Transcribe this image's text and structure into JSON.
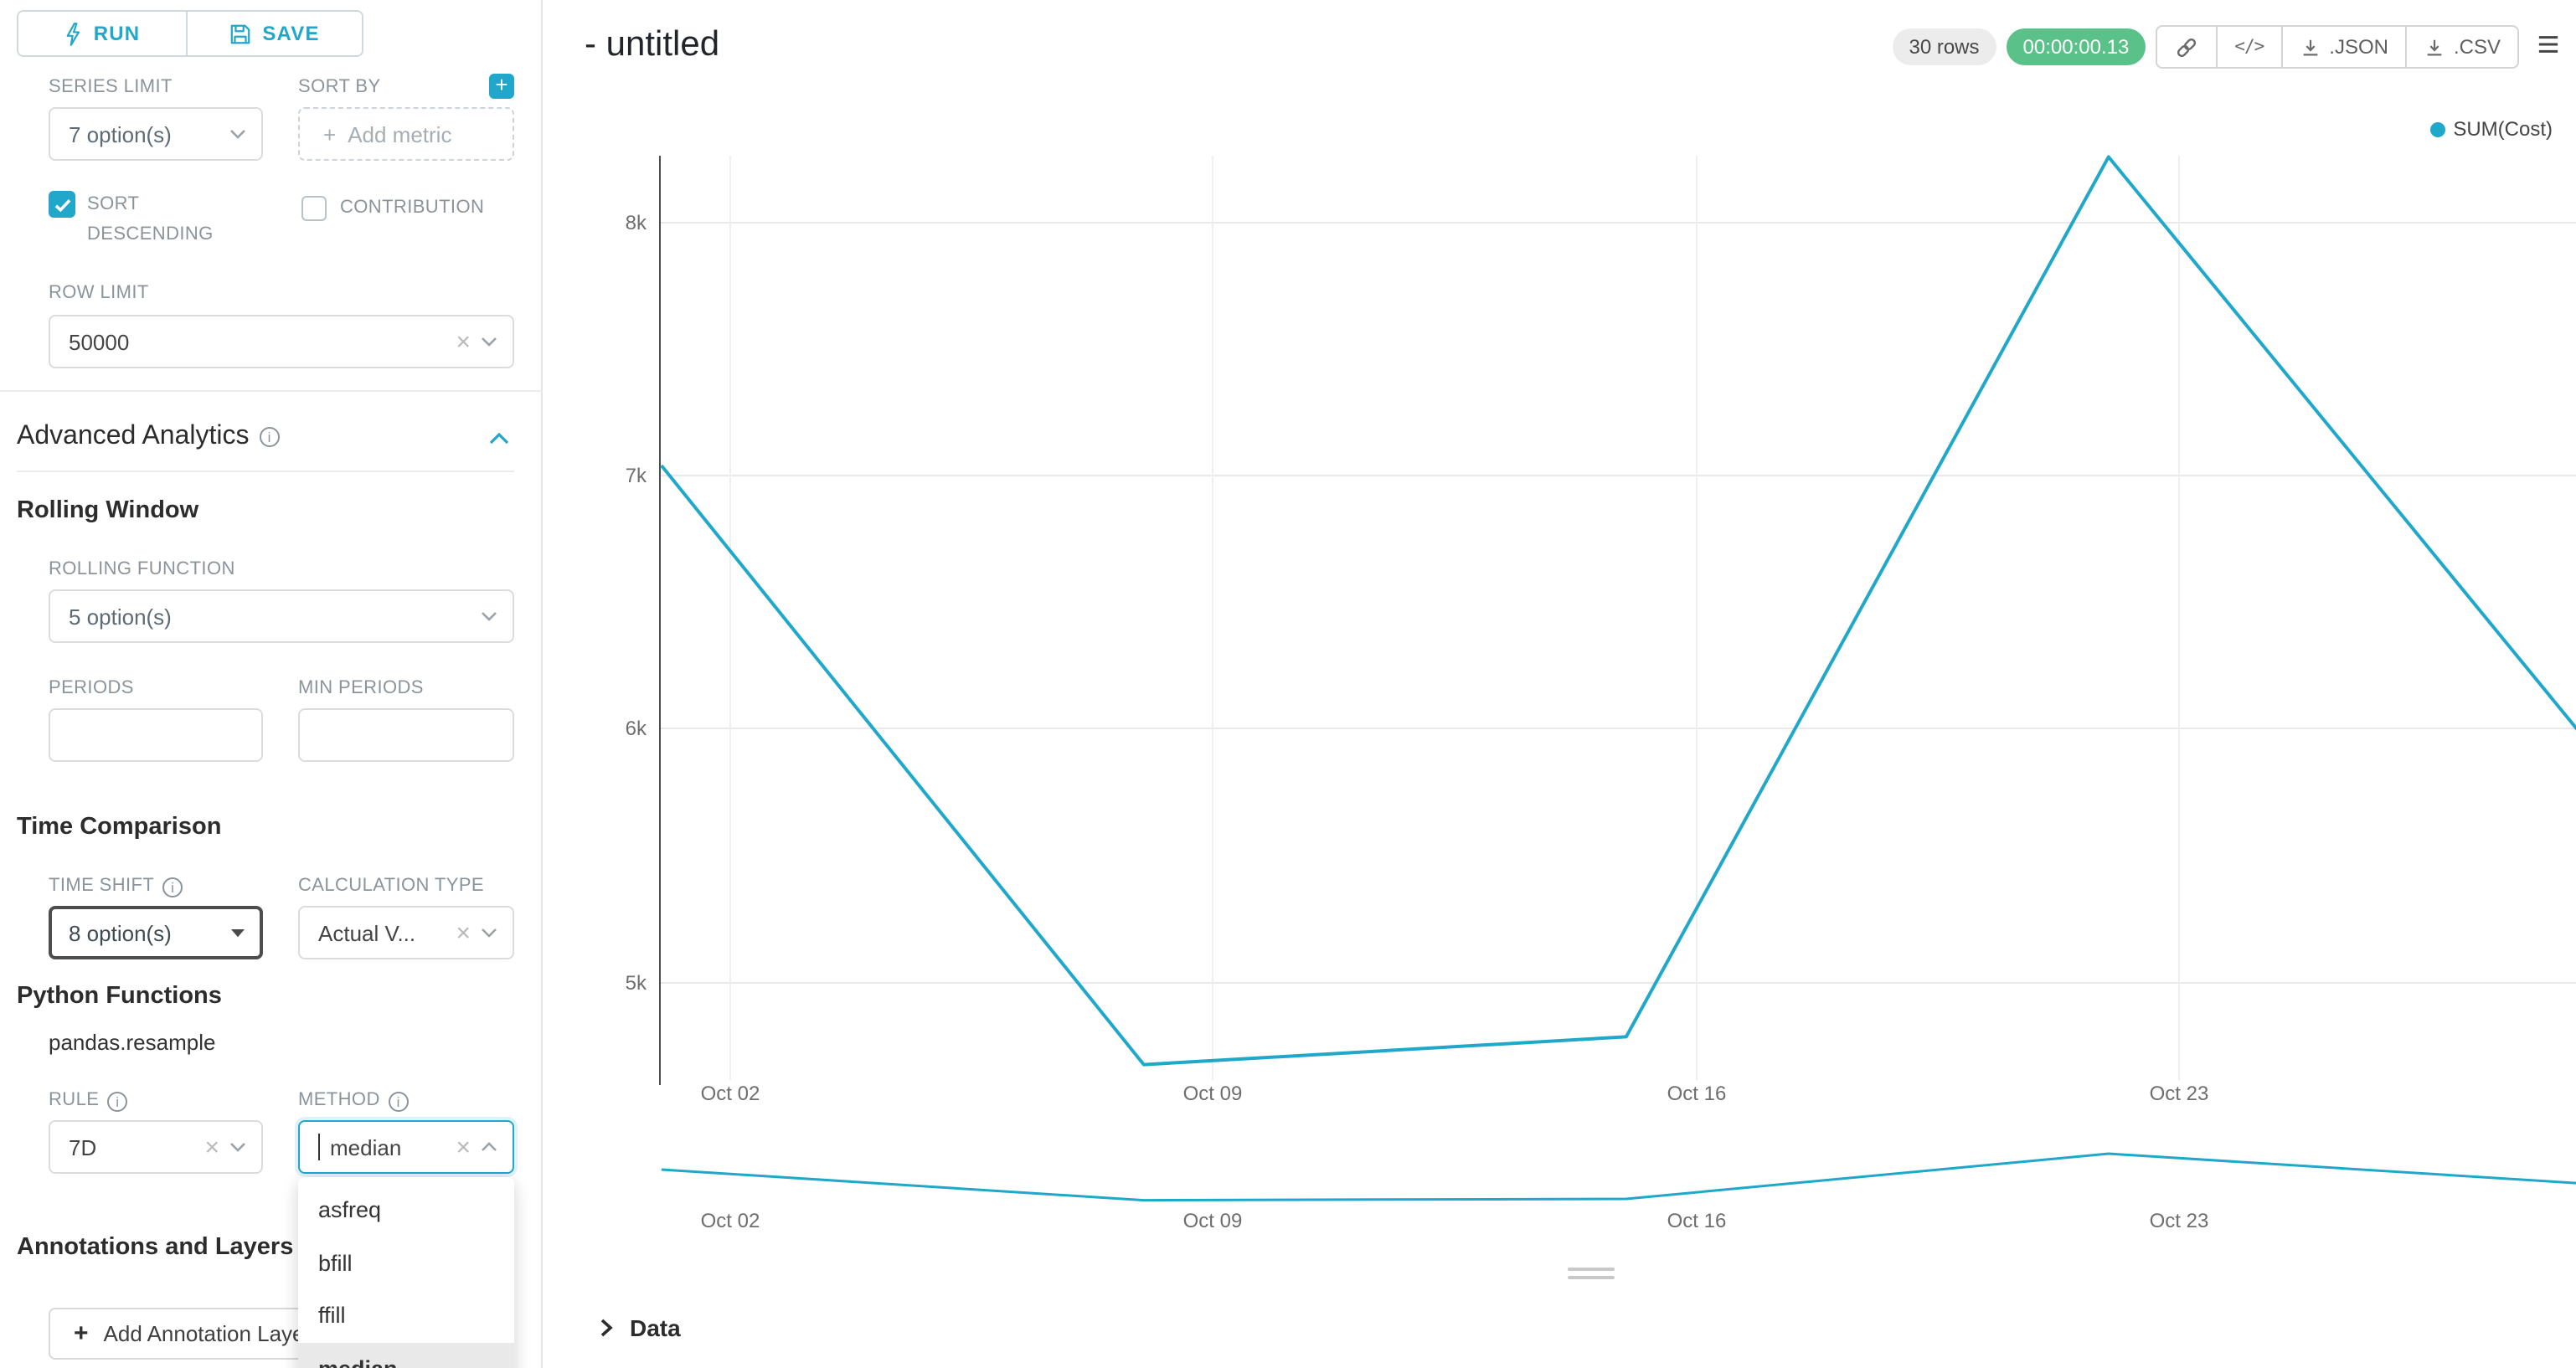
{
  "colors": {
    "primary": "#20A7C9",
    "line": "#1FA8C9",
    "timer_green": "#5AC189"
  },
  "sidebar": {
    "run_label": "RUN",
    "save_label": "SAVE",
    "series_limit": {
      "label": "SERIES LIMIT",
      "value": "7 option(s)"
    },
    "sort_by": {
      "label": "SORT BY",
      "placeholder": "Add metric"
    },
    "sort_descending": {
      "label": "SORT DESCENDING",
      "checked": true
    },
    "contribution": {
      "label": "CONTRIBUTION",
      "checked": false
    },
    "row_limit": {
      "label": "ROW LIMIT",
      "value": "50000"
    },
    "advanced_analytics_title": "Advanced Analytics",
    "rolling_window": {
      "title": "Rolling Window",
      "rolling_function": {
        "label": "ROLLING FUNCTION",
        "value": "5 option(s)"
      },
      "periods_label": "PERIODS",
      "min_periods_label": "MIN PERIODS"
    },
    "time_comparison": {
      "title": "Time Comparison",
      "time_shift": {
        "label": "TIME SHIFT",
        "value": "8 option(s)"
      },
      "calculation_type": {
        "label": "CALCULATION TYPE",
        "value": "Actual V..."
      }
    },
    "python_functions": {
      "title": "Python Functions",
      "subtitle": "pandas.resample",
      "rule": {
        "label": "RULE",
        "value": "7D"
      },
      "method": {
        "label": "METHOD",
        "value": "median",
        "options": [
          "asfreq",
          "bfill",
          "ffill",
          "median"
        ],
        "selected": "median"
      }
    },
    "annotations": {
      "title": "Annotations and Layers",
      "add_button_label": "Add Annotation Layer"
    }
  },
  "header": {
    "title": "- untitled",
    "rows_badge": "30 rows",
    "timer_badge": "00:00:00.13",
    "json_label": ".JSON",
    "csv_label": ".CSV"
  },
  "chart_data": [
    {
      "type": "line",
      "title": "",
      "series": [
        {
          "name": "SUM(Cost)",
          "x": [
            "Oct 01",
            "Oct 08",
            "Oct 15",
            "Oct 22",
            "Oct 29"
          ],
          "x_days": [
            1,
            8,
            15,
            22,
            29
          ],
          "values": [
            7040,
            4670,
            4780,
            8260,
            5930
          ]
        }
      ],
      "x_ticks": [
        "Oct 02",
        "Oct 09",
        "Oct 16",
        "Oct 23"
      ],
      "y_ticks": [
        "8k",
        "7k",
        "6k",
        "5k"
      ],
      "ylim": [
        4600,
        8300
      ],
      "grid": true,
      "legend": [
        "SUM(Cost)"
      ],
      "legend_position": "top-right"
    },
    {
      "type": "line",
      "role": "range-selector",
      "series": [
        {
          "name": "SUM(Cost)",
          "x": [
            "Oct 01",
            "Oct 08",
            "Oct 15",
            "Oct 22",
            "Oct 29"
          ],
          "x_days": [
            1,
            8,
            15,
            22,
            29
          ],
          "values": [
            7040,
            4670,
            4780,
            8260,
            5930
          ]
        }
      ],
      "x_ticks": [
        "Oct 02",
        "Oct 09",
        "Oct 16",
        "Oct 23"
      ],
      "grid": false
    }
  ],
  "data_panel": {
    "label": "Data"
  }
}
